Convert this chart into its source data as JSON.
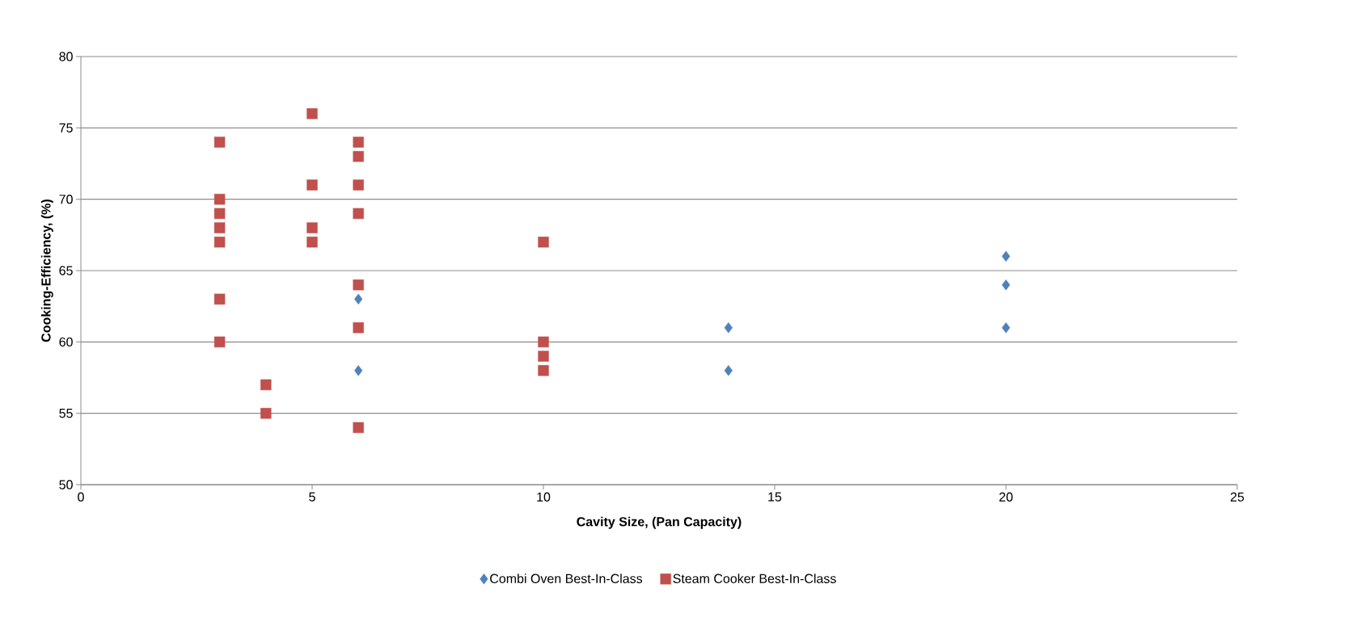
{
  "chart_data": {
    "type": "scatter",
    "xlabel": "Cavity Size, (Pan Capacity)",
    "ylabel": "Cooking-Efficiency, (%)",
    "xlim": [
      0,
      25
    ],
    "xticks": [
      0,
      5,
      10,
      15,
      20,
      25
    ],
    "ylim": [
      50,
      80
    ],
    "yticks": [
      50,
      55,
      60,
      65,
      70,
      75,
      80
    ],
    "grid": "y",
    "legend": "bottom",
    "series": [
      {
        "name": "Combi Oven Best-In-Class",
        "color": "#4f81bd",
        "marker": "diamond",
        "x": [
          6,
          6,
          14,
          14,
          20,
          20,
          20
        ],
        "values": [
          63,
          58,
          61,
          58,
          66,
          64,
          61
        ]
      },
      {
        "name": "Steam Cooker Best-In-Class",
        "color": "#c0504d",
        "marker": "square",
        "x": [
          3,
          3,
          3,
          3,
          3,
          3,
          3,
          4,
          4,
          5,
          5,
          5,
          5,
          6,
          6,
          6,
          6,
          6,
          6,
          6,
          10,
          10,
          10,
          10
        ],
        "values": [
          74,
          70,
          69,
          68,
          67,
          63,
          60,
          57,
          55,
          76,
          71,
          68,
          67,
          74,
          73,
          71,
          69,
          64,
          61,
          54,
          67,
          60,
          59,
          58
        ]
      }
    ]
  }
}
